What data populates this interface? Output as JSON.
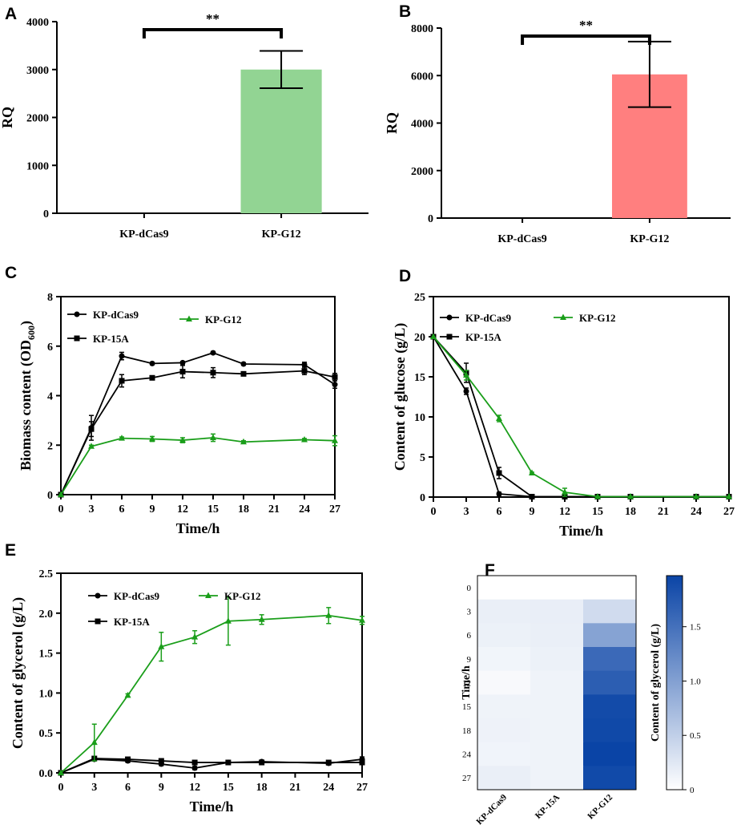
{
  "chart_data": [
    {
      "panel": "A",
      "type": "bar",
      "title": "",
      "ylabel": "RQ",
      "xlabel": "",
      "categories": [
        "KP-dCas9",
        "KP-G12"
      ],
      "values": [
        0,
        3000
      ],
      "errors": [
        0,
        390
      ],
      "ylim": [
        0,
        4000
      ],
      "yticks": [
        "0",
        "1000",
        "2000",
        "3000",
        "4000"
      ],
      "significance": "**",
      "colors": [
        "#ffffff",
        "#92d493"
      ]
    },
    {
      "panel": "B",
      "type": "bar",
      "title": "",
      "ylabel": "RQ",
      "xlabel": "",
      "categories": [
        "KP-dCas9",
        "KP-G12"
      ],
      "values": [
        0,
        6050
      ],
      "errors": [
        0,
        1380
      ],
      "ylim": [
        0,
        8000
      ],
      "yticks": [
        "0",
        "2000",
        "4000",
        "6000",
        "8000"
      ],
      "significance": "**",
      "colors": [
        "#ffffff",
        "#ff7f7f"
      ]
    },
    {
      "panel": "C",
      "type": "line",
      "ylabel_main": "Biomass content (OD",
      "ylabel_sub": "600",
      "ylabel_end": ")",
      "xlabel": "Time/h",
      "x": [
        0,
        3,
        6,
        9,
        12,
        15,
        18,
        24,
        27
      ],
      "xticks": [
        "0",
        "3",
        "6",
        "9",
        "12",
        "15",
        "18",
        "21",
        "24",
        "27"
      ],
      "xtick_values": [
        0,
        3,
        6,
        9,
        12,
        15,
        18,
        21,
        24,
        27
      ],
      "ylim": [
        0,
        8
      ],
      "yticks": [
        "0",
        "2",
        "4",
        "6",
        "8"
      ],
      "series": [
        {
          "name": "KP-dCas9",
          "color": "#000000",
          "marker": "circle",
          "values": [
            0,
            2.7,
            5.6,
            5.3,
            5.33,
            5.73,
            5.28,
            5.25,
            4.45
          ],
          "errors": [
            0,
            0.5,
            0.15,
            0.05,
            0.05,
            0.05,
            0.05,
            0.1,
            0.15
          ]
        },
        {
          "name": "KP-15A",
          "color": "#000000",
          "marker": "square",
          "values": [
            0,
            2.65,
            4.6,
            4.72,
            4.97,
            4.93,
            4.88,
            5.0,
            4.75
          ],
          "errors": [
            0,
            0.3,
            0.25,
            0.08,
            0.25,
            0.2,
            0.05,
            0.15,
            0.15
          ]
        },
        {
          "name": "KP-G12",
          "color": "#1a9e1a",
          "marker": "triangle",
          "values": [
            0,
            1.95,
            2.28,
            2.25,
            2.2,
            2.3,
            2.13,
            2.22,
            2.18
          ],
          "errors": [
            0,
            0.05,
            0.05,
            0.1,
            0.1,
            0.15,
            0.05,
            0.05,
            0.2
          ]
        }
      ]
    },
    {
      "panel": "D",
      "type": "line",
      "ylabel": "Content of glucose (g/L)",
      "xlabel": "Time/h",
      "x": [
        0,
        3,
        6,
        9,
        12,
        15,
        18,
        24,
        27
      ],
      "xticks": [
        "0",
        "3",
        "6",
        "9",
        "12",
        "15",
        "18",
        "21",
        "24",
        "27"
      ],
      "xtick_values": [
        0,
        3,
        6,
        9,
        12,
        15,
        18,
        21,
        24,
        27
      ],
      "ylim": [
        0,
        25
      ],
      "yticks": [
        "0",
        "5",
        "10",
        "15",
        "20",
        "25"
      ],
      "series": [
        {
          "name": "KP-dCas9",
          "color": "#000000",
          "marker": "circle",
          "values": [
            20,
            13.2,
            0.4,
            0.05,
            0.05,
            0.05,
            0.05,
            0.05,
            0.05
          ],
          "errors": [
            0,
            0.4,
            0.2,
            0,
            0,
            0,
            0,
            0,
            0
          ]
        },
        {
          "name": "KP-15A",
          "color": "#000000",
          "marker": "square",
          "values": [
            20,
            15.5,
            3.0,
            0.05,
            0.05,
            0.05,
            0.05,
            0.05,
            0.05
          ],
          "errors": [
            0,
            1.2,
            0.7,
            0,
            0,
            0,
            0,
            0,
            0
          ]
        },
        {
          "name": "KP-G12",
          "color": "#1a9e1a",
          "marker": "triangle",
          "values": [
            20,
            15.2,
            9.8,
            3.0,
            0.6,
            0.05,
            0.05,
            0.05,
            0.05
          ],
          "errors": [
            0,
            0.6,
            0.4,
            0.1,
            0.5,
            0,
            0,
            0,
            0
          ]
        }
      ]
    },
    {
      "panel": "E",
      "type": "line",
      "ylabel": "Content of glycerol (g/L)",
      "xlabel": "Time/h",
      "x": [
        0,
        3,
        6,
        9,
        12,
        15,
        18,
        24,
        27
      ],
      "xticks": [
        "0",
        "3",
        "6",
        "9",
        "12",
        "15",
        "18",
        "21",
        "24",
        "27"
      ],
      "xtick_values": [
        0,
        3,
        6,
        9,
        12,
        15,
        18,
        21,
        24,
        27
      ],
      "ylim": [
        0,
        2.5
      ],
      "yticks": [
        "0.0",
        "0.5",
        "1.0",
        "1.5",
        "2.0",
        "2.5"
      ],
      "series": [
        {
          "name": "KP-dCas9",
          "color": "#000000",
          "marker": "circle",
          "values": [
            0,
            0.17,
            0.15,
            0.11,
            0.06,
            0.13,
            0.14,
            0.12,
            0.17
          ],
          "errors": [
            0,
            0.02,
            0.02,
            0.02,
            0.02,
            0.02,
            0.02,
            0.02,
            0.03
          ]
        },
        {
          "name": "KP-15A",
          "color": "#000000",
          "marker": "square",
          "values": [
            0,
            0.18,
            0.17,
            0.15,
            0.13,
            0.13,
            0.13,
            0.13,
            0.13
          ],
          "errors": [
            0,
            0.02,
            0.02,
            0.02,
            0.02,
            0.02,
            0.02,
            0.02,
            0.02
          ]
        },
        {
          "name": "KP-G12",
          "color": "#1a9e1a",
          "marker": "triangle",
          "values": [
            0,
            0.38,
            0.97,
            1.58,
            1.7,
            1.9,
            1.92,
            1.97,
            1.91
          ],
          "errors": [
            0,
            0.23,
            0.02,
            0.18,
            0.08,
            0.3,
            0.06,
            0.1,
            0.05
          ]
        }
      ]
    },
    {
      "panel": "F",
      "type": "heatmap",
      "ylabel": "Time/h",
      "colorbar_label": "Content of glycerol (g/L)",
      "rows": [
        "0",
        "3",
        "6",
        "9",
        "12",
        "15",
        "18",
        "24",
        "27"
      ],
      "columns": [
        "KP-dCas9",
        "KP-15A",
        "KP-G12"
      ],
      "values": [
        [
          0,
          0,
          0
        ],
        [
          0.17,
          0.18,
          0.38
        ],
        [
          0.15,
          0.17,
          0.97
        ],
        [
          0.11,
          0.15,
          1.58
        ],
        [
          0.06,
          0.13,
          1.7
        ],
        [
          0.13,
          0.13,
          1.9
        ],
        [
          0.14,
          0.13,
          1.92
        ],
        [
          0.12,
          0.13,
          1.97
        ],
        [
          0.17,
          0.13,
          1.91
        ]
      ],
      "vmin": 0,
      "vmax": 1.97,
      "colorbar_ticks": [
        "0",
        "0.5",
        "1.0",
        "1.5"
      ],
      "colorbar_tick_values": [
        0,
        0.5,
        1.0,
        1.5
      ],
      "color_low": "#ffffff",
      "color_high": "#0a44a6"
    }
  ]
}
